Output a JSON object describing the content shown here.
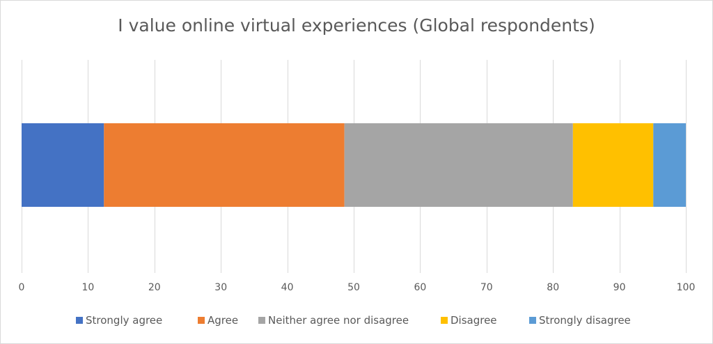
{
  "chart_data": {
    "type": "bar",
    "orientation": "horizontal",
    "stacked": true,
    "title": "I value online virtual experiences (Global respondents)",
    "xlabel": "",
    "ylabel": "",
    "xlim": [
      0,
      100
    ],
    "xticks": [
      0,
      10,
      20,
      30,
      40,
      50,
      60,
      70,
      80,
      90,
      100
    ],
    "grid": true,
    "legend_position": "bottom",
    "categories": [
      ""
    ],
    "series": [
      {
        "name": "Strongly agree",
        "values": [
          12.4
        ],
        "color": "#4472C4"
      },
      {
        "name": "Agree",
        "values": [
          36.2
        ],
        "color": "#ED7D31"
      },
      {
        "name": "Neither agree nor disagree",
        "values": [
          34.4
        ],
        "color": "#A5A5A5"
      },
      {
        "name": "Disagree",
        "values": [
          12.1
        ],
        "color": "#FFC000"
      },
      {
        "name": "Strongly disagree",
        "values": [
          4.9
        ],
        "color": "#5B9BD5"
      }
    ]
  }
}
